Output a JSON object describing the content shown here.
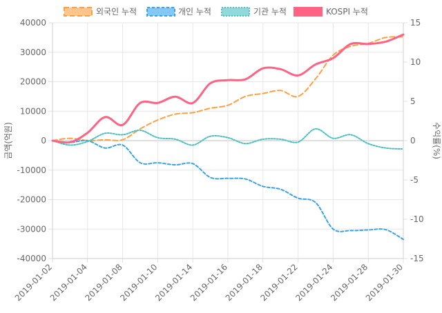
{
  "chart_data": {
    "type": "line",
    "legend_position": "top",
    "grid": true,
    "x": [
      "2019-01-02",
      "2019-01-03",
      "2019-01-04",
      "2019-01-07",
      "2019-01-08",
      "2019-01-09",
      "2019-01-10",
      "2019-01-11",
      "2019-01-14",
      "2019-01-15",
      "2019-01-16",
      "2019-01-17",
      "2019-01-18",
      "2019-01-21",
      "2019-01-22",
      "2019-01-23",
      "2019-01-24",
      "2019-01-25",
      "2019-01-28",
      "2019-01-29",
      "2019-01-30"
    ],
    "x_tick_labels": [
      "2019-01-02",
      "2019-01-04",
      "2019-01-08",
      "2019-01-10",
      "2019-01-14",
      "2019-01-16",
      "2019-01-18",
      "2019-01-22",
      "2019-01-24",
      "2019-01-28",
      "2019-01-30"
    ],
    "y_left": {
      "label": "금액(억원)",
      "ylim": [
        -40000,
        40000
      ],
      "ticks": [
        40000,
        30000,
        20000,
        10000,
        0,
        -10000,
        -20000,
        -30000,
        -40000
      ]
    },
    "y_right": {
      "label": "수익률(%)",
      "ylim": [
        -15,
        15
      ],
      "ticks": [
        15,
        10,
        5,
        0,
        -5,
        -10,
        -15
      ]
    },
    "series": [
      {
        "name": "외국인 누적",
        "axis": "left",
        "color": "#ff9f40",
        "dash": "7,4",
        "width": 2,
        "values": [
          0,
          800,
          0,
          300,
          300,
          4000,
          7000,
          9000,
          9500,
          11000,
          12000,
          15000,
          16000,
          17000,
          15000,
          21000,
          29000,
          32000,
          33000,
          35000,
          35200
        ]
      },
      {
        "name": "개인 누적",
        "axis": "left",
        "color": "#36a2eb",
        "dash": "4,3",
        "width": 2,
        "values": [
          0,
          -600,
          0,
          -2500,
          -1500,
          -7500,
          -7500,
          -8200,
          -7800,
          -12500,
          -12800,
          -13000,
          -15500,
          -16500,
          -19500,
          -21000,
          -30000,
          -30500,
          -30300,
          -30200,
          -33500
        ]
      },
      {
        "name": "기관 누적",
        "axis": "left",
        "color": "#4bc0c0",
        "dash": "2,2",
        "width": 2,
        "values": [
          0,
          -1500,
          -300,
          2500,
          2000,
          3500,
          1000,
          500,
          -1500,
          1500,
          1000,
          -1000,
          500,
          500,
          -500,
          4000,
          800,
          2000,
          -1000,
          -2500,
          -2800
        ]
      },
      {
        "name": "KOSPI 누적",
        "axis": "right",
        "color": "#ff6384",
        "dash": "",
        "width": 3,
        "values": [
          0,
          -0.2,
          1.0,
          3.0,
          2.0,
          4.8,
          4.8,
          5.6,
          4.8,
          7.3,
          7.7,
          7.8,
          9.2,
          9.1,
          8.3,
          9.7,
          10.5,
          12.3,
          12.3,
          12.6,
          13.5
        ]
      }
    ]
  }
}
